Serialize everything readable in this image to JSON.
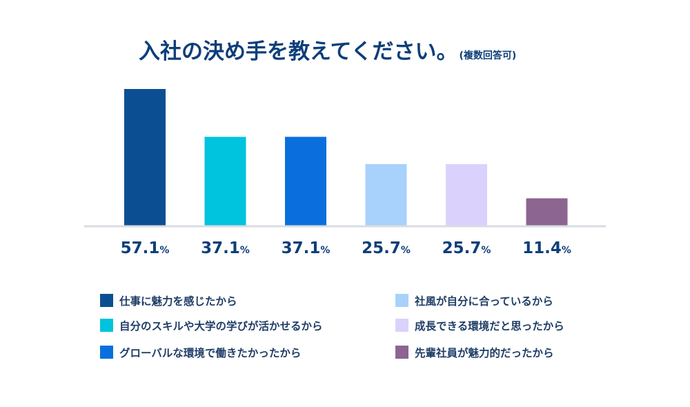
{
  "chart_data": {
    "type": "bar",
    "title": "入社の決め手を教えてください。",
    "subtitle": "(複数回答可)",
    "categories": [
      "仕事に魅力を感じたから",
      "自分のスキルや大学の学びが活かせるから",
      "グローバルな環境で働きたかったから",
      "社風が自分に合っているから",
      "成長できる環境だと思ったから",
      "先輩社員が魅力的だったから"
    ],
    "values": [
      57.1,
      37.1,
      37.1,
      25.7,
      25.7,
      11.4
    ],
    "value_labels": [
      "57.1",
      "37.1",
      "37.1",
      "25.7",
      "25.7",
      "11.4"
    ],
    "value_suffix": "%",
    "colors": [
      "#0b4f92",
      "#00c3de",
      "#0a6fdc",
      "#a8d2fb",
      "#dad2fc",
      "#8c6590"
    ],
    "axis_color": "#d8dce2",
    "ylim": [
      0,
      57.1
    ],
    "grid": false,
    "legend_position": "bottom"
  }
}
